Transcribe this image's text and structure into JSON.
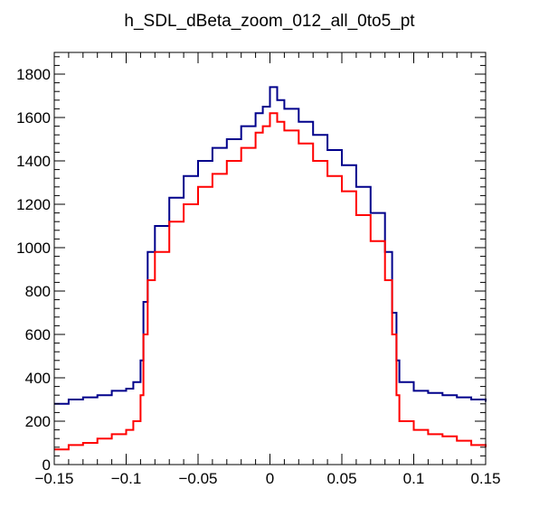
{
  "chart_data": {
    "type": "line",
    "title": "h_SDL_dBeta_zoom_012_all_0to5_pt",
    "xlabel": "",
    "ylabel": "",
    "xlim": [
      -0.15,
      0.15
    ],
    "ylim": [
      0,
      1900
    ],
    "x_ticks": [
      -0.15,
      -0.1,
      -0.05,
      0,
      0.05,
      0.1,
      0.15
    ],
    "x_tick_labels": [
      "−0.15",
      "−0.1",
      "−0.05",
      "0",
      "0.05",
      "0.1",
      "0.15"
    ],
    "y_ticks": [
      0,
      200,
      400,
      600,
      800,
      1000,
      1200,
      1400,
      1600,
      1800
    ],
    "y_tick_labels": [
      "0",
      "200",
      "400",
      "600",
      "800",
      "1000",
      "1200",
      "1400",
      "1600",
      "1800"
    ],
    "grid": false,
    "legend": "none",
    "x": [
      -0.15,
      -0.14,
      -0.13,
      -0.12,
      -0.11,
      -0.1,
      -0.095,
      -0.09,
      -0.088,
      -0.085,
      -0.08,
      -0.07,
      -0.06,
      -0.05,
      -0.04,
      -0.03,
      -0.02,
      -0.01,
      -0.005,
      0,
      0.005,
      0.01,
      0.02,
      0.03,
      0.04,
      0.05,
      0.06,
      0.07,
      0.08,
      0.085,
      0.088,
      0.09,
      0.1,
      0.11,
      0.12,
      0.13,
      0.14,
      0.15
    ],
    "series": [
      {
        "color": "#00008b",
        "values": [
          280,
          300,
          310,
          320,
          340,
          350,
          380,
          480,
          750,
          980,
          1100,
          1230,
          1330,
          1400,
          1460,
          1500,
          1560,
          1620,
          1650,
          1740,
          1680,
          1640,
          1580,
          1520,
          1450,
          1380,
          1280,
          1160,
          980,
          700,
          480,
          380,
          340,
          330,
          320,
          310,
          300,
          290
        ]
      },
      {
        "color": "#ff0000",
        "values": [
          70,
          90,
          100,
          120,
          140,
          160,
          200,
          320,
          600,
          850,
          980,
          1120,
          1200,
          1280,
          1340,
          1400,
          1460,
          1530,
          1560,
          1620,
          1580,
          1540,
          1480,
          1400,
          1330,
          1260,
          1150,
          1030,
          850,
          600,
          320,
          200,
          160,
          140,
          130,
          110,
          90,
          80
        ]
      }
    ]
  }
}
